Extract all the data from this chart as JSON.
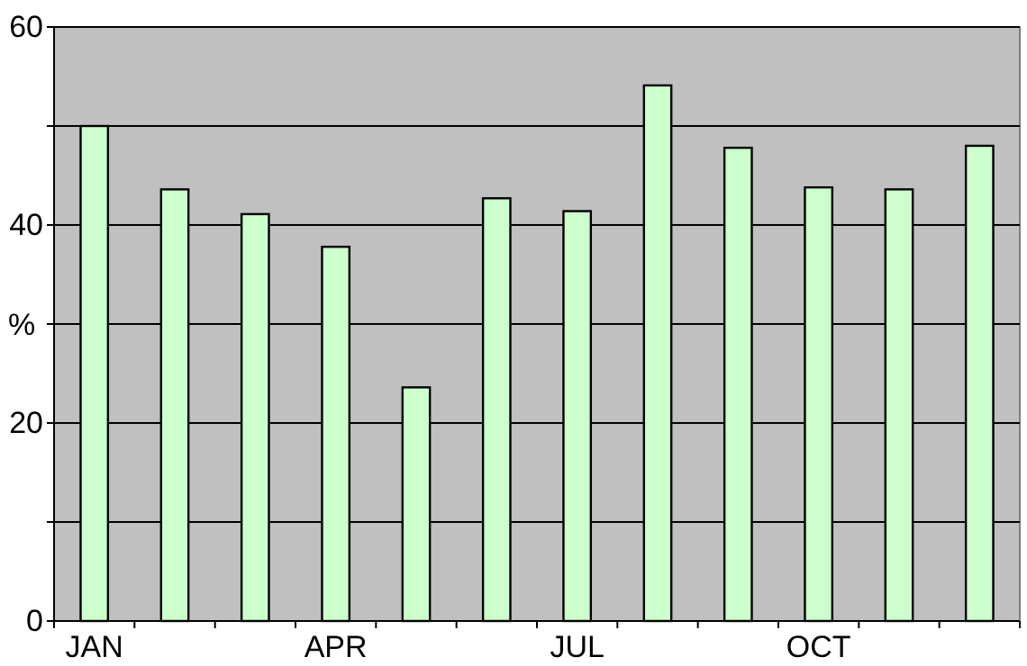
{
  "chart_data": {
    "type": "bar",
    "ylabel": "%",
    "categories": [
      "JAN",
      null,
      null,
      "APR",
      null,
      null,
      "JUL",
      null,
      null,
      "OCT",
      null,
      null
    ],
    "values": [
      50,
      43.6,
      41.1,
      37.8,
      23.6,
      42.7,
      41.4,
      54.1,
      47.8,
      43.8,
      43.6,
      48
    ],
    "color": "#ccffcc",
    "ylim": [
      0,
      60
    ],
    "yticks": [
      0,
      {
        "value": 10,
        "label": null
      },
      20,
      {
        "value": 30,
        "label": null
      },
      40,
      {
        "value": 50,
        "label": null
      },
      60
    ],
    "grid": "y"
  }
}
